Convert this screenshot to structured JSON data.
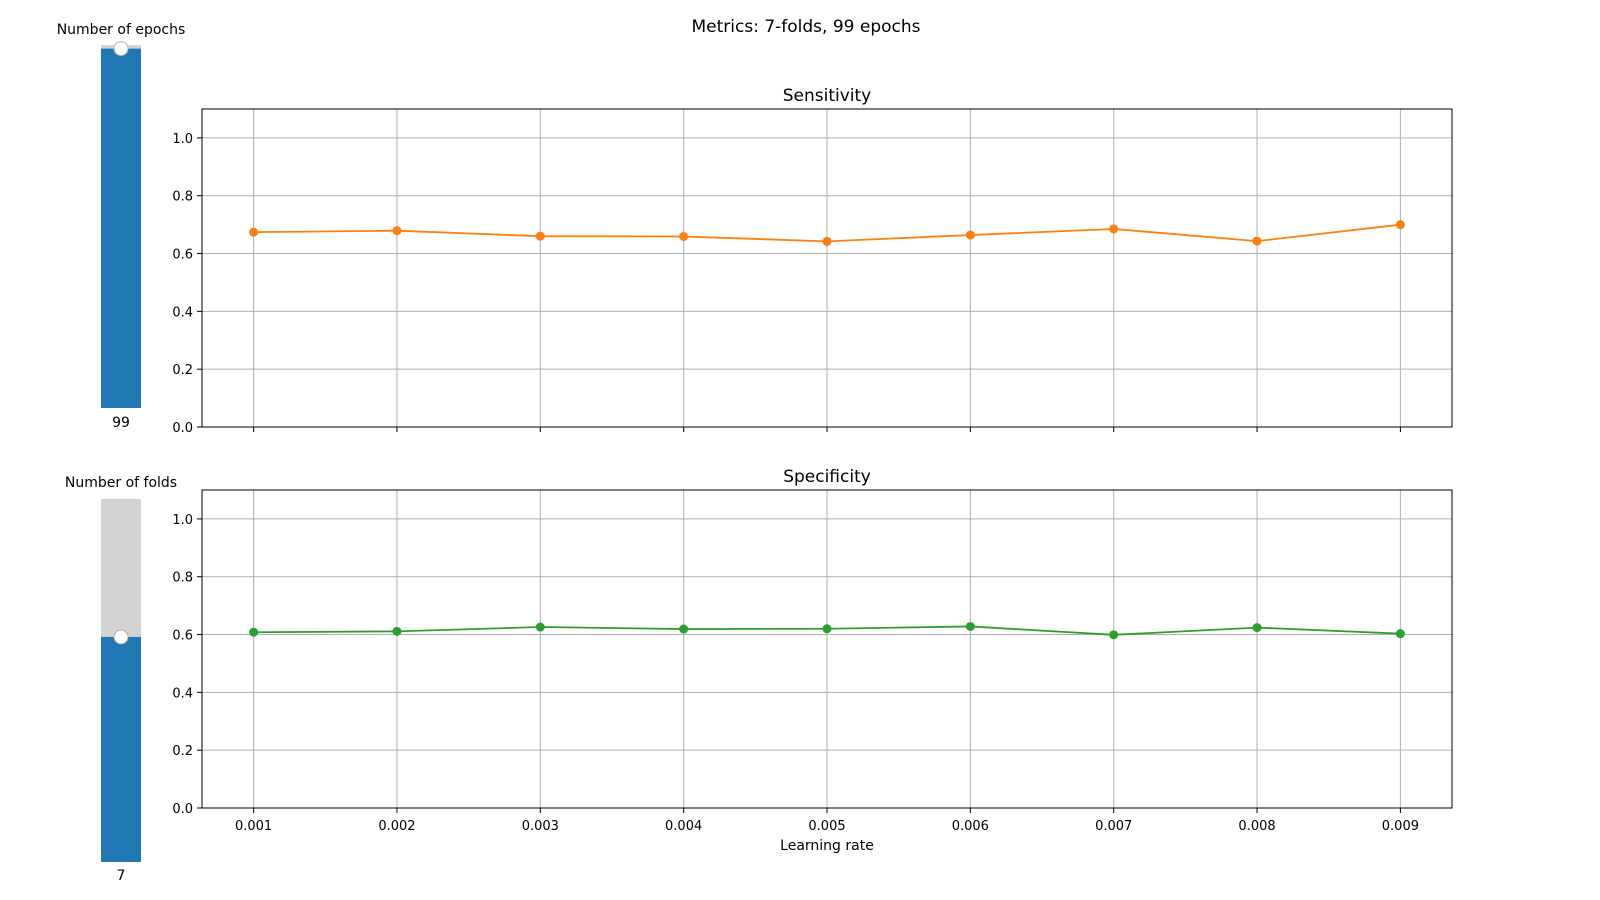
{
  "figure_title": "Metrics: 7-folds, 99 epochs",
  "sliders": [
    {
      "label": "Number of epochs",
      "value": 99,
      "value_text": "99",
      "fraction": 0.99,
      "color_fill": "#1f77b4",
      "color_track": "#d3d3d3"
    },
    {
      "label": "Number of folds",
      "value": 7,
      "value_text": "7",
      "fraction": 0.62,
      "color_fill": "#1f77b4",
      "color_track": "#d3d3d3"
    }
  ],
  "chart_data": [
    {
      "type": "line",
      "title": "Sensitivity",
      "xlabel": "",
      "ylabel": "",
      "x": [
        0.001,
        0.002,
        0.003,
        0.004,
        0.005,
        0.006,
        0.007,
        0.008,
        0.009
      ],
      "x_tick_labels": [
        "0.001",
        "0.002",
        "0.003",
        "0.004",
        "0.005",
        "0.006",
        "0.007",
        "0.008",
        "0.009"
      ],
      "show_x_tick_labels": false,
      "y_ticks": [
        "0.0",
        "0.2",
        "0.4",
        "0.6",
        "0.8",
        "1.0"
      ],
      "ylim": [
        0,
        1.1
      ],
      "grid": true,
      "series": [
        {
          "color": "#ff7f0e",
          "values": [
            0.674,
            0.679,
            0.66,
            0.659,
            0.642,
            0.664,
            0.685,
            0.643,
            0.7
          ]
        }
      ]
    },
    {
      "type": "line",
      "title": "Specificity",
      "xlabel": "Learning rate",
      "ylabel": "",
      "x": [
        0.001,
        0.002,
        0.003,
        0.004,
        0.005,
        0.006,
        0.007,
        0.008,
        0.009
      ],
      "x_tick_labels": [
        "0.001",
        "0.002",
        "0.003",
        "0.004",
        "0.005",
        "0.006",
        "0.007",
        "0.008",
        "0.009"
      ],
      "show_x_tick_labels": true,
      "y_ticks": [
        "0.0",
        "0.2",
        "0.4",
        "0.6",
        "0.8",
        "1.0"
      ],
      "ylim": [
        0,
        1.1
      ],
      "grid": true,
      "series": [
        {
          "color": "#2ca02c",
          "values": [
            0.608,
            0.611,
            0.626,
            0.619,
            0.62,
            0.628,
            0.599,
            0.624,
            0.603
          ]
        }
      ]
    }
  ]
}
